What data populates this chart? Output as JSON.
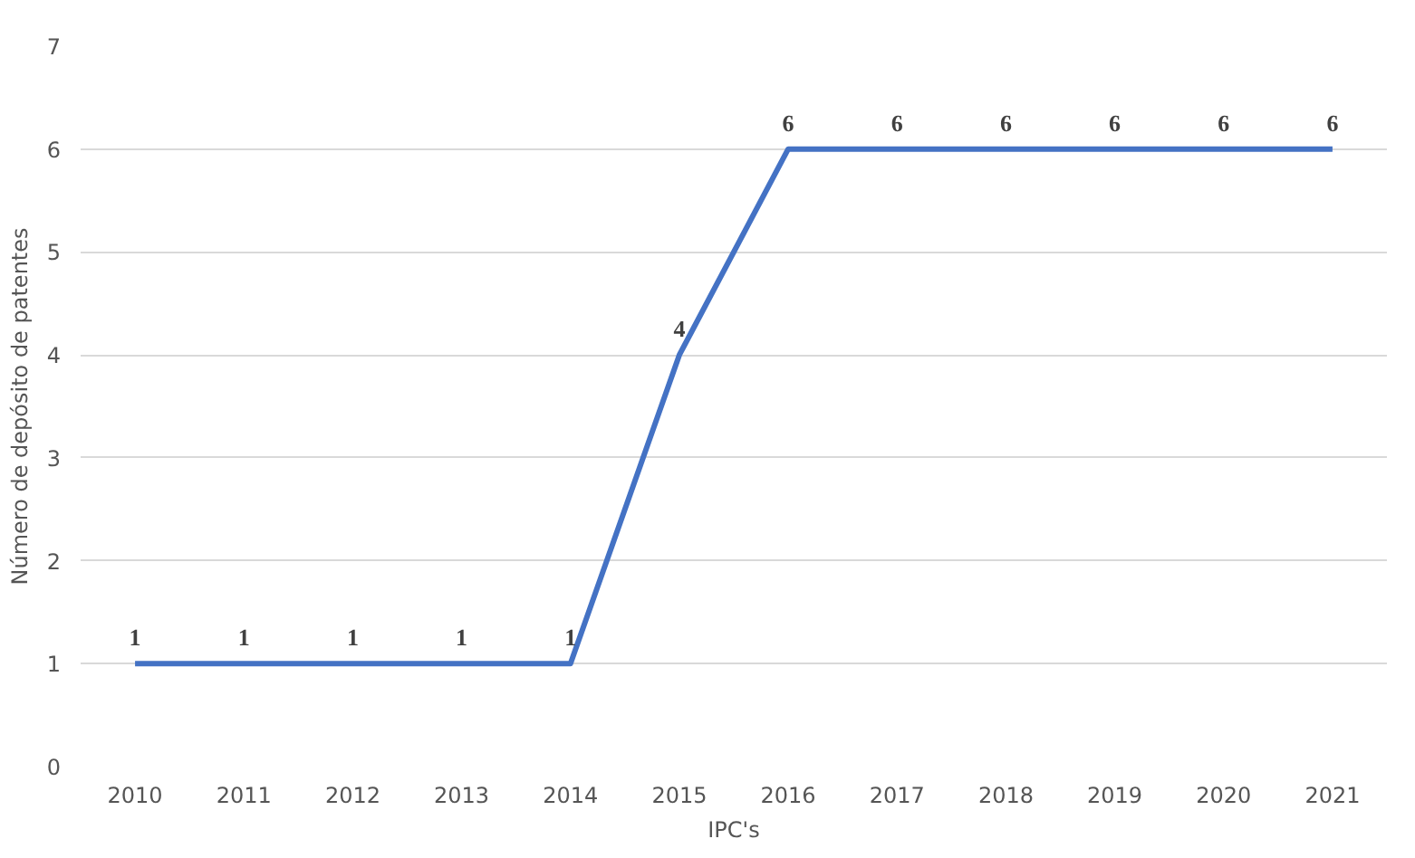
{
  "chart_data": {
    "type": "line",
    "xlabel": "IPC's",
    "ylabel": "Número de depósito de patentes",
    "categories": [
      "2010",
      "2011",
      "2012",
      "2013",
      "2014",
      "2015",
      "2016",
      "2017",
      "2018",
      "2019",
      "2020",
      "2021"
    ],
    "series": [
      {
        "color": "#4472c4",
        "values": [
          1,
          1,
          1,
          1,
          1,
          4,
          6,
          6,
          6,
          6,
          6,
          6
        ]
      }
    ],
    "ylim": [
      0,
      7
    ],
    "yticks": [
      0,
      1,
      2,
      3,
      4,
      5,
      6,
      7
    ],
    "grid": "y",
    "data_labels": true,
    "marker": "none",
    "line_style": "solid"
  }
}
